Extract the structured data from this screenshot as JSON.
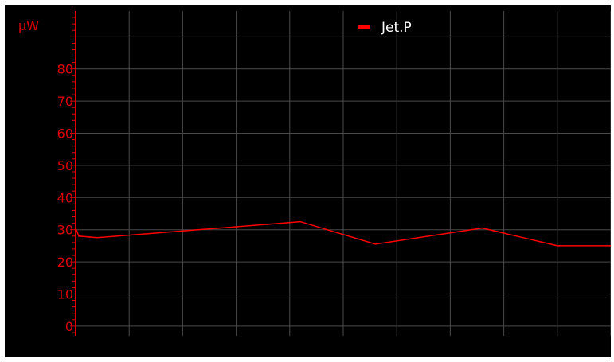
{
  "chart_data": {
    "type": "line",
    "ylabel": "µW",
    "ylim": [
      -3,
      98
    ],
    "yticks": [
      0,
      10,
      20,
      30,
      40,
      50,
      60,
      70,
      80
    ],
    "ytick_labels": [
      "0",
      "10",
      "20",
      "30",
      "40",
      "50",
      "60",
      "70",
      "80"
    ],
    "x_grid_count": 10,
    "grid": true,
    "legend_position": "top-center",
    "background": "#000000",
    "gridColor": "#4a4a4a",
    "axisColor": "#e00000",
    "series": [
      {
        "name": "Jet.P",
        "color": "#ff0000",
        "x": [
          0,
          0.06,
          0.4,
          4.2,
          5.6,
          7.6,
          9,
          10
        ],
        "y": [
          30.5,
          28,
          27.5,
          32.5,
          25.5,
          30.5,
          25,
          25
        ]
      }
    ]
  }
}
